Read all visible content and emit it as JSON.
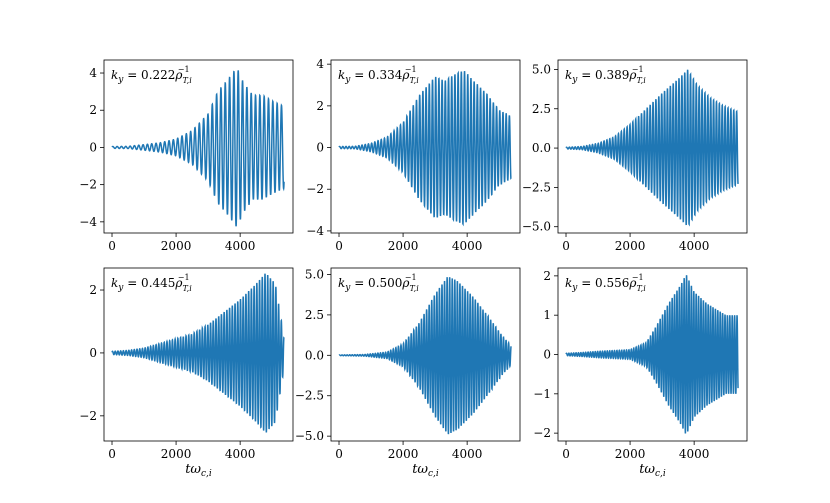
{
  "chart_data": [
    {
      "type": "line",
      "title": "",
      "annotation": "k_y = 0.222ρ_{T,i}^{-1}",
      "annotation_parts": {
        "lhs": "k",
        "lhs_sub": "y",
        "value": " = 0.222",
        "rho": "ρ",
        "sub": "T,i",
        "sup": "−1"
      },
      "xlabel": "",
      "ylabel": "",
      "xlim": [
        -250,
        5650
      ],
      "ylim": [
        -4.6,
        4.7
      ],
      "xticks": [
        0,
        2000,
        4000
      ],
      "xtick_labels": [
        "0",
        "2000",
        "4000"
      ],
      "yticks": [
        -4,
        -2,
        0,
        2,
        4
      ],
      "ytick_labels": [
        "−4",
        "−2",
        "0",
        "2",
        "4"
      ],
      "x_end": 5370,
      "period": 135,
      "envelope": [
        [
          0,
          0.05
        ],
        [
          500,
          0.06
        ],
        [
          1000,
          0.15
        ],
        [
          1500,
          0.25
        ],
        [
          2000,
          0.45
        ],
        [
          2500,
          0.9
        ],
        [
          3000,
          1.8
        ],
        [
          3300,
          3.0
        ],
        [
          3600,
          3.6
        ],
        [
          3900,
          4.3
        ],
        [
          4100,
          3.5
        ],
        [
          4400,
          2.8
        ],
        [
          4700,
          2.8
        ],
        [
          5000,
          2.5
        ],
        [
          5370,
          2.2
        ]
      ],
      "grid": false,
      "legend": "none"
    },
    {
      "type": "line",
      "title": "",
      "annotation": "k_y = 0.334ρ_{T,i}^{-1}",
      "annotation_parts": {
        "lhs": "k",
        "lhs_sub": "y",
        "value": " = 0.334",
        "rho": "ρ",
        "sub": "T,i",
        "sup": "−1"
      },
      "xlabel": "",
      "ylabel": "",
      "xlim": [
        -250,
        5650
      ],
      "ylim": [
        -4.1,
        4.2
      ],
      "xticks": [
        0,
        2000,
        4000
      ],
      "xtick_labels": [
        "0",
        "2000",
        "4000"
      ],
      "yticks": [
        -4,
        -2,
        0,
        2,
        4
      ],
      "ytick_labels": [
        "−4",
        "−2",
        "0",
        "2",
        "4"
      ],
      "x_end": 5370,
      "period": 100,
      "envelope": [
        [
          0,
          0.05
        ],
        [
          500,
          0.06
        ],
        [
          1000,
          0.2
        ],
        [
          1500,
          0.5
        ],
        [
          2000,
          1.2
        ],
        [
          2500,
          2.5
        ],
        [
          3000,
          3.4
        ],
        [
          3300,
          3.2
        ],
        [
          3600,
          3.5
        ],
        [
          3900,
          3.7
        ],
        [
          4200,
          3.2
        ],
        [
          4600,
          2.6
        ],
        [
          5000,
          1.8
        ],
        [
          5370,
          1.5
        ]
      ],
      "grid": false,
      "legend": "none"
    },
    {
      "type": "line",
      "title": "",
      "annotation": "k_y = 0.389ρ_{T,i}^{-1}",
      "annotation_parts": {
        "lhs": "k",
        "lhs_sub": "y",
        "value": " = 0.389",
        "rho": "ρ",
        "sub": "T,i",
        "sup": "−1"
      },
      "xlabel": "",
      "ylabel": "",
      "xlim": [
        -250,
        5650
      ],
      "ylim": [
        -5.4,
        5.6
      ],
      "xticks": [
        0,
        2000,
        4000
      ],
      "xtick_labels": [
        "0",
        "2000",
        "4000"
      ],
      "yticks": [
        -5.0,
        -2.5,
        0.0,
        2.5,
        5.0
      ],
      "ytick_labels": [
        "−5.0",
        "−2.5",
        "0.0",
        "2.5",
        "5.0"
      ],
      "x_end": 5370,
      "period": 90,
      "envelope": [
        [
          0,
          0.05
        ],
        [
          500,
          0.1
        ],
        [
          1000,
          0.3
        ],
        [
          1500,
          0.7
        ],
        [
          2000,
          1.5
        ],
        [
          2500,
          2.5
        ],
        [
          3000,
          3.5
        ],
        [
          3500,
          4.4
        ],
        [
          3800,
          5.0
        ],
        [
          4100,
          4.0
        ],
        [
          4500,
          3.2
        ],
        [
          4900,
          2.7
        ],
        [
          5370,
          2.3
        ]
      ],
      "grid": false,
      "legend": "none"
    },
    {
      "type": "line",
      "title": "",
      "annotation": "k_y = 0.445ρ_{T,i}^{-1}",
      "annotation_parts": {
        "lhs": "k",
        "lhs_sub": "y",
        "value": " = 0.445",
        "rho": "ρ",
        "sub": "T,i",
        "sup": "−1"
      },
      "xlabel": "tω_{c,i}",
      "ylabel": "",
      "xlim": [
        -250,
        5650
      ],
      "ylim": [
        -2.8,
        2.7
      ],
      "xticks": [
        0,
        2000,
        4000
      ],
      "xtick_labels": [
        "0",
        "2000",
        "4000"
      ],
      "yticks": [
        -2,
        0,
        2
      ],
      "ytick_labels": [
        "−2",
        "0",
        "2"
      ],
      "x_end": 5370,
      "period": 85,
      "envelope": [
        [
          0,
          0.05
        ],
        [
          500,
          0.08
        ],
        [
          1000,
          0.15
        ],
        [
          1500,
          0.3
        ],
        [
          2000,
          0.45
        ],
        [
          2500,
          0.6
        ],
        [
          3000,
          0.9
        ],
        [
          3500,
          1.3
        ],
        [
          4000,
          1.7
        ],
        [
          4500,
          2.2
        ],
        [
          4800,
          2.55
        ],
        [
          5100,
          2.2
        ],
        [
          5370,
          0.5
        ]
      ],
      "grid": false,
      "legend": "none"
    },
    {
      "type": "line",
      "title": "",
      "annotation": "k_y = 0.500ρ_{T,i}^{-1}",
      "annotation_parts": {
        "lhs": "k",
        "lhs_sub": "y",
        "value": " = 0.500",
        "rho": "ρ",
        "sub": "T,i",
        "sup": "−1"
      },
      "xlabel": "tω_{c,i}",
      "ylabel": "",
      "xlim": [
        -250,
        5650
      ],
      "ylim": [
        -5.3,
        5.4
      ],
      "xticks": [
        0,
        2000,
        4000
      ],
      "xtick_labels": [
        "0",
        "2000",
        "4000"
      ],
      "yticks": [
        -5.0,
        -2.5,
        0.0,
        2.5,
        5.0
      ],
      "ytick_labels": [
        "−5.0",
        "−2.5",
        "0.0",
        "2.5",
        "5.0"
      ],
      "x_end": 5370,
      "period": 80,
      "envelope": [
        [
          0,
          0.02
        ],
        [
          800,
          0.05
        ],
        [
          1500,
          0.2
        ],
        [
          2000,
          0.7
        ],
        [
          2500,
          2.0
        ],
        [
          3000,
          3.8
        ],
        [
          3400,
          4.9
        ],
        [
          3700,
          4.6
        ],
        [
          4200,
          3.6
        ],
        [
          4700,
          2.3
        ],
        [
          5100,
          1.2
        ],
        [
          5370,
          0.6
        ]
      ],
      "grid": false,
      "legend": "none"
    },
    {
      "type": "line",
      "title": "",
      "annotation": "k_y = 0.556ρ_{T,i}^{-1}",
      "annotation_parts": {
        "lhs": "k",
        "lhs_sub": "y",
        "value": " = 0.556",
        "rho": "ρ",
        "sub": "T,i",
        "sup": "−1"
      },
      "xlabel": "tω_{c,i}",
      "ylabel": "",
      "xlim": [
        -250,
        5650
      ],
      "ylim": [
        -2.2,
        2.2
      ],
      "xticks": [
        0,
        2000,
        4000
      ],
      "xtick_labels": [
        "0",
        "2000",
        "4000"
      ],
      "yticks": [
        -2,
        -1,
        0,
        1,
        2
      ],
      "ytick_labels": [
        "−2",
        "−1",
        "0",
        "1",
        "2"
      ],
      "x_end": 5370,
      "period": 75,
      "envelope": [
        [
          0,
          0.03
        ],
        [
          500,
          0.05
        ],
        [
          1000,
          0.08
        ],
        [
          1500,
          0.1
        ],
        [
          2000,
          0.12
        ],
        [
          2500,
          0.3
        ],
        [
          2800,
          0.7
        ],
        [
          3200,
          1.3
        ],
        [
          3600,
          1.8
        ],
        [
          3750,
          2.05
        ],
        [
          4000,
          1.6
        ],
        [
          4400,
          1.3
        ],
        [
          5000,
          1.0
        ],
        [
          5370,
          1.0
        ]
      ],
      "grid": false,
      "legend": "none"
    }
  ],
  "colors": {
    "line": "#1f77b4",
    "axes": "#000000",
    "background": "#ffffff"
  }
}
